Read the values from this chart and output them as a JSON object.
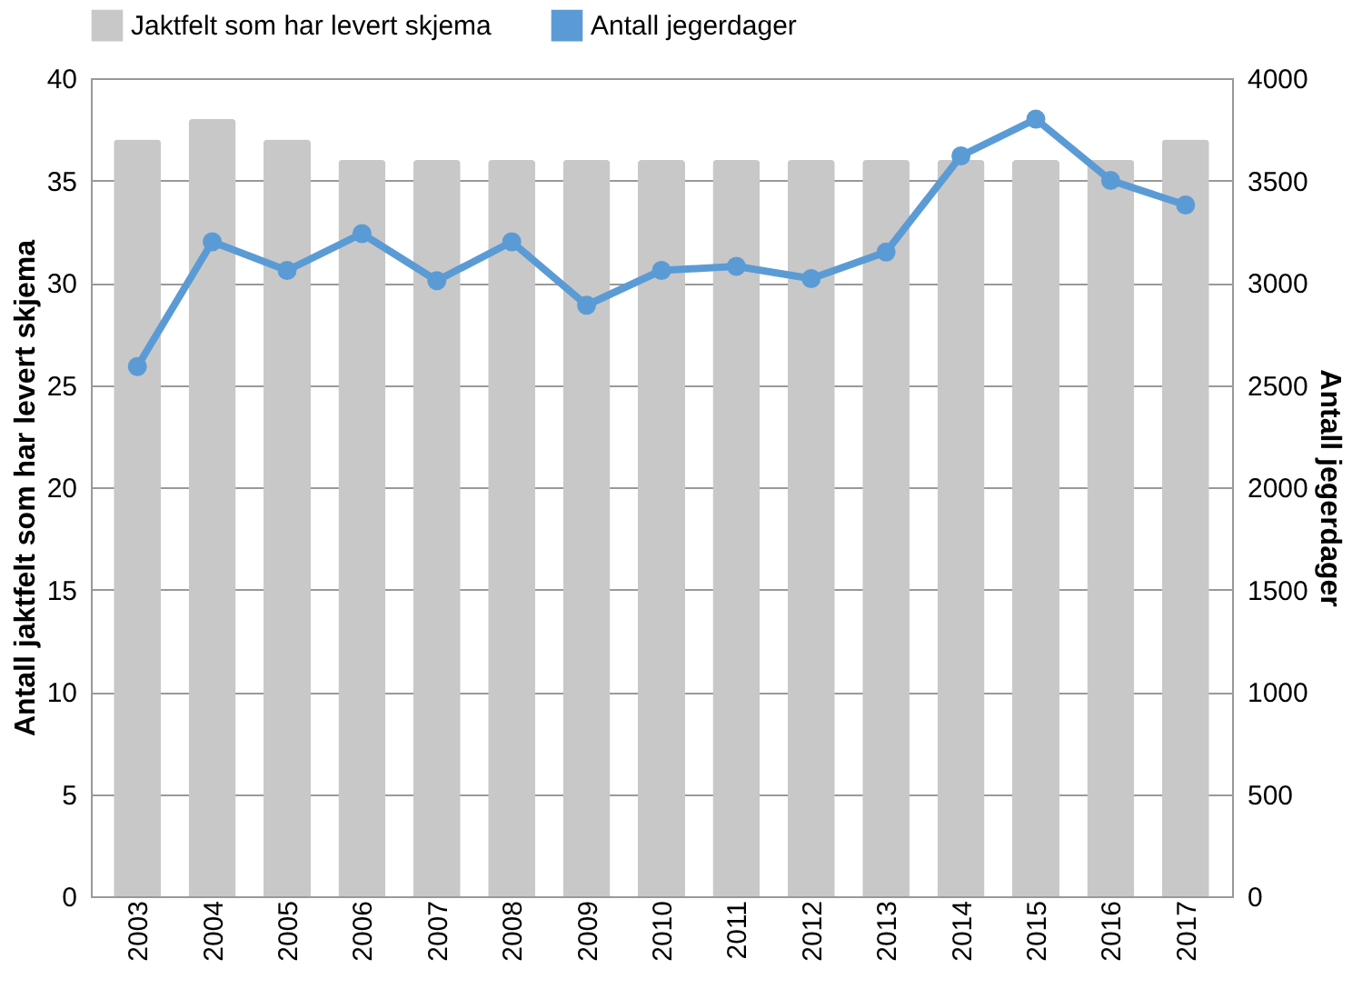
{
  "chart_data": {
    "type": "bar",
    "categories": [
      "2003",
      "2004",
      "2005",
      "2006",
      "2007",
      "2008",
      "2009",
      "2010",
      "2011",
      "2012",
      "2013",
      "2014",
      "2015",
      "2016",
      "2017"
    ],
    "ylabel": "Antall jaktfelt som har levert skjema",
    "y2label": "Antall jegerdager",
    "ylim": [
      0,
      40
    ],
    "yticks": [
      0,
      5,
      10,
      15,
      20,
      25,
      30,
      35,
      40
    ],
    "y2lim": [
      0,
      4000
    ],
    "y2ticks": [
      0,
      500,
      1000,
      1500,
      2000,
      2500,
      3000,
      3500,
      4000
    ],
    "grid": "y",
    "legend": "top",
    "marker": "circle",
    "series": [
      {
        "name": "Jaktfelt som har levert skjema",
        "color": "#c8c8c8",
        "values": [
          37,
          38,
          37,
          36,
          36,
          36,
          36,
          36,
          36,
          36,
          36,
          36,
          36,
          36,
          37
        ]
      },
      {
        "name": "Antall jegerdager",
        "type": "line",
        "axis": "y2",
        "color": "#5b9bd5",
        "values": [
          2590,
          3200,
          3060,
          3240,
          3010,
          3200,
          2890,
          3060,
          3080,
          3020,
          3150,
          3620,
          3800,
          3500,
          3380
        ]
      }
    ]
  }
}
